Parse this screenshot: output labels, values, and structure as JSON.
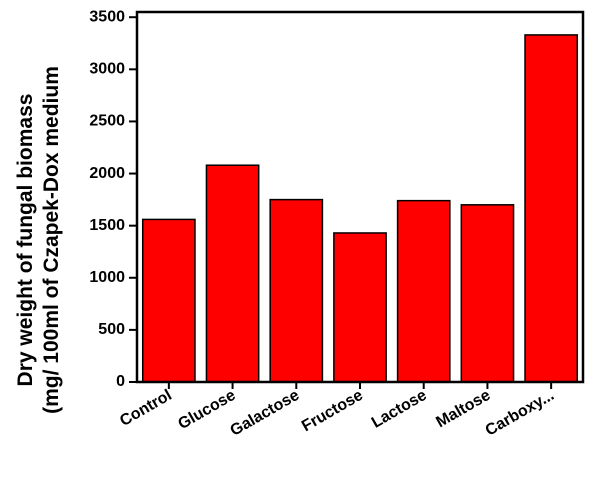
{
  "chart_data": {
    "type": "bar",
    "ylabel": [
      "Dry weight of fungal biomass",
      "(mg/ 100ml of Czapek-Dox medium"
    ],
    "categories": [
      "Control",
      "Glucose",
      "Galactose",
      "Fructose",
      "Lactose",
      "Maltose",
      "Carboxy..."
    ],
    "values": [
      1560,
      2080,
      1750,
      1430,
      1740,
      1700,
      3330
    ],
    "color": "#ff0000",
    "ylim": [
      0,
      3550
    ],
    "yticks": [
      0,
      500,
      1000,
      1500,
      2000,
      2500,
      3000,
      3500
    ]
  }
}
